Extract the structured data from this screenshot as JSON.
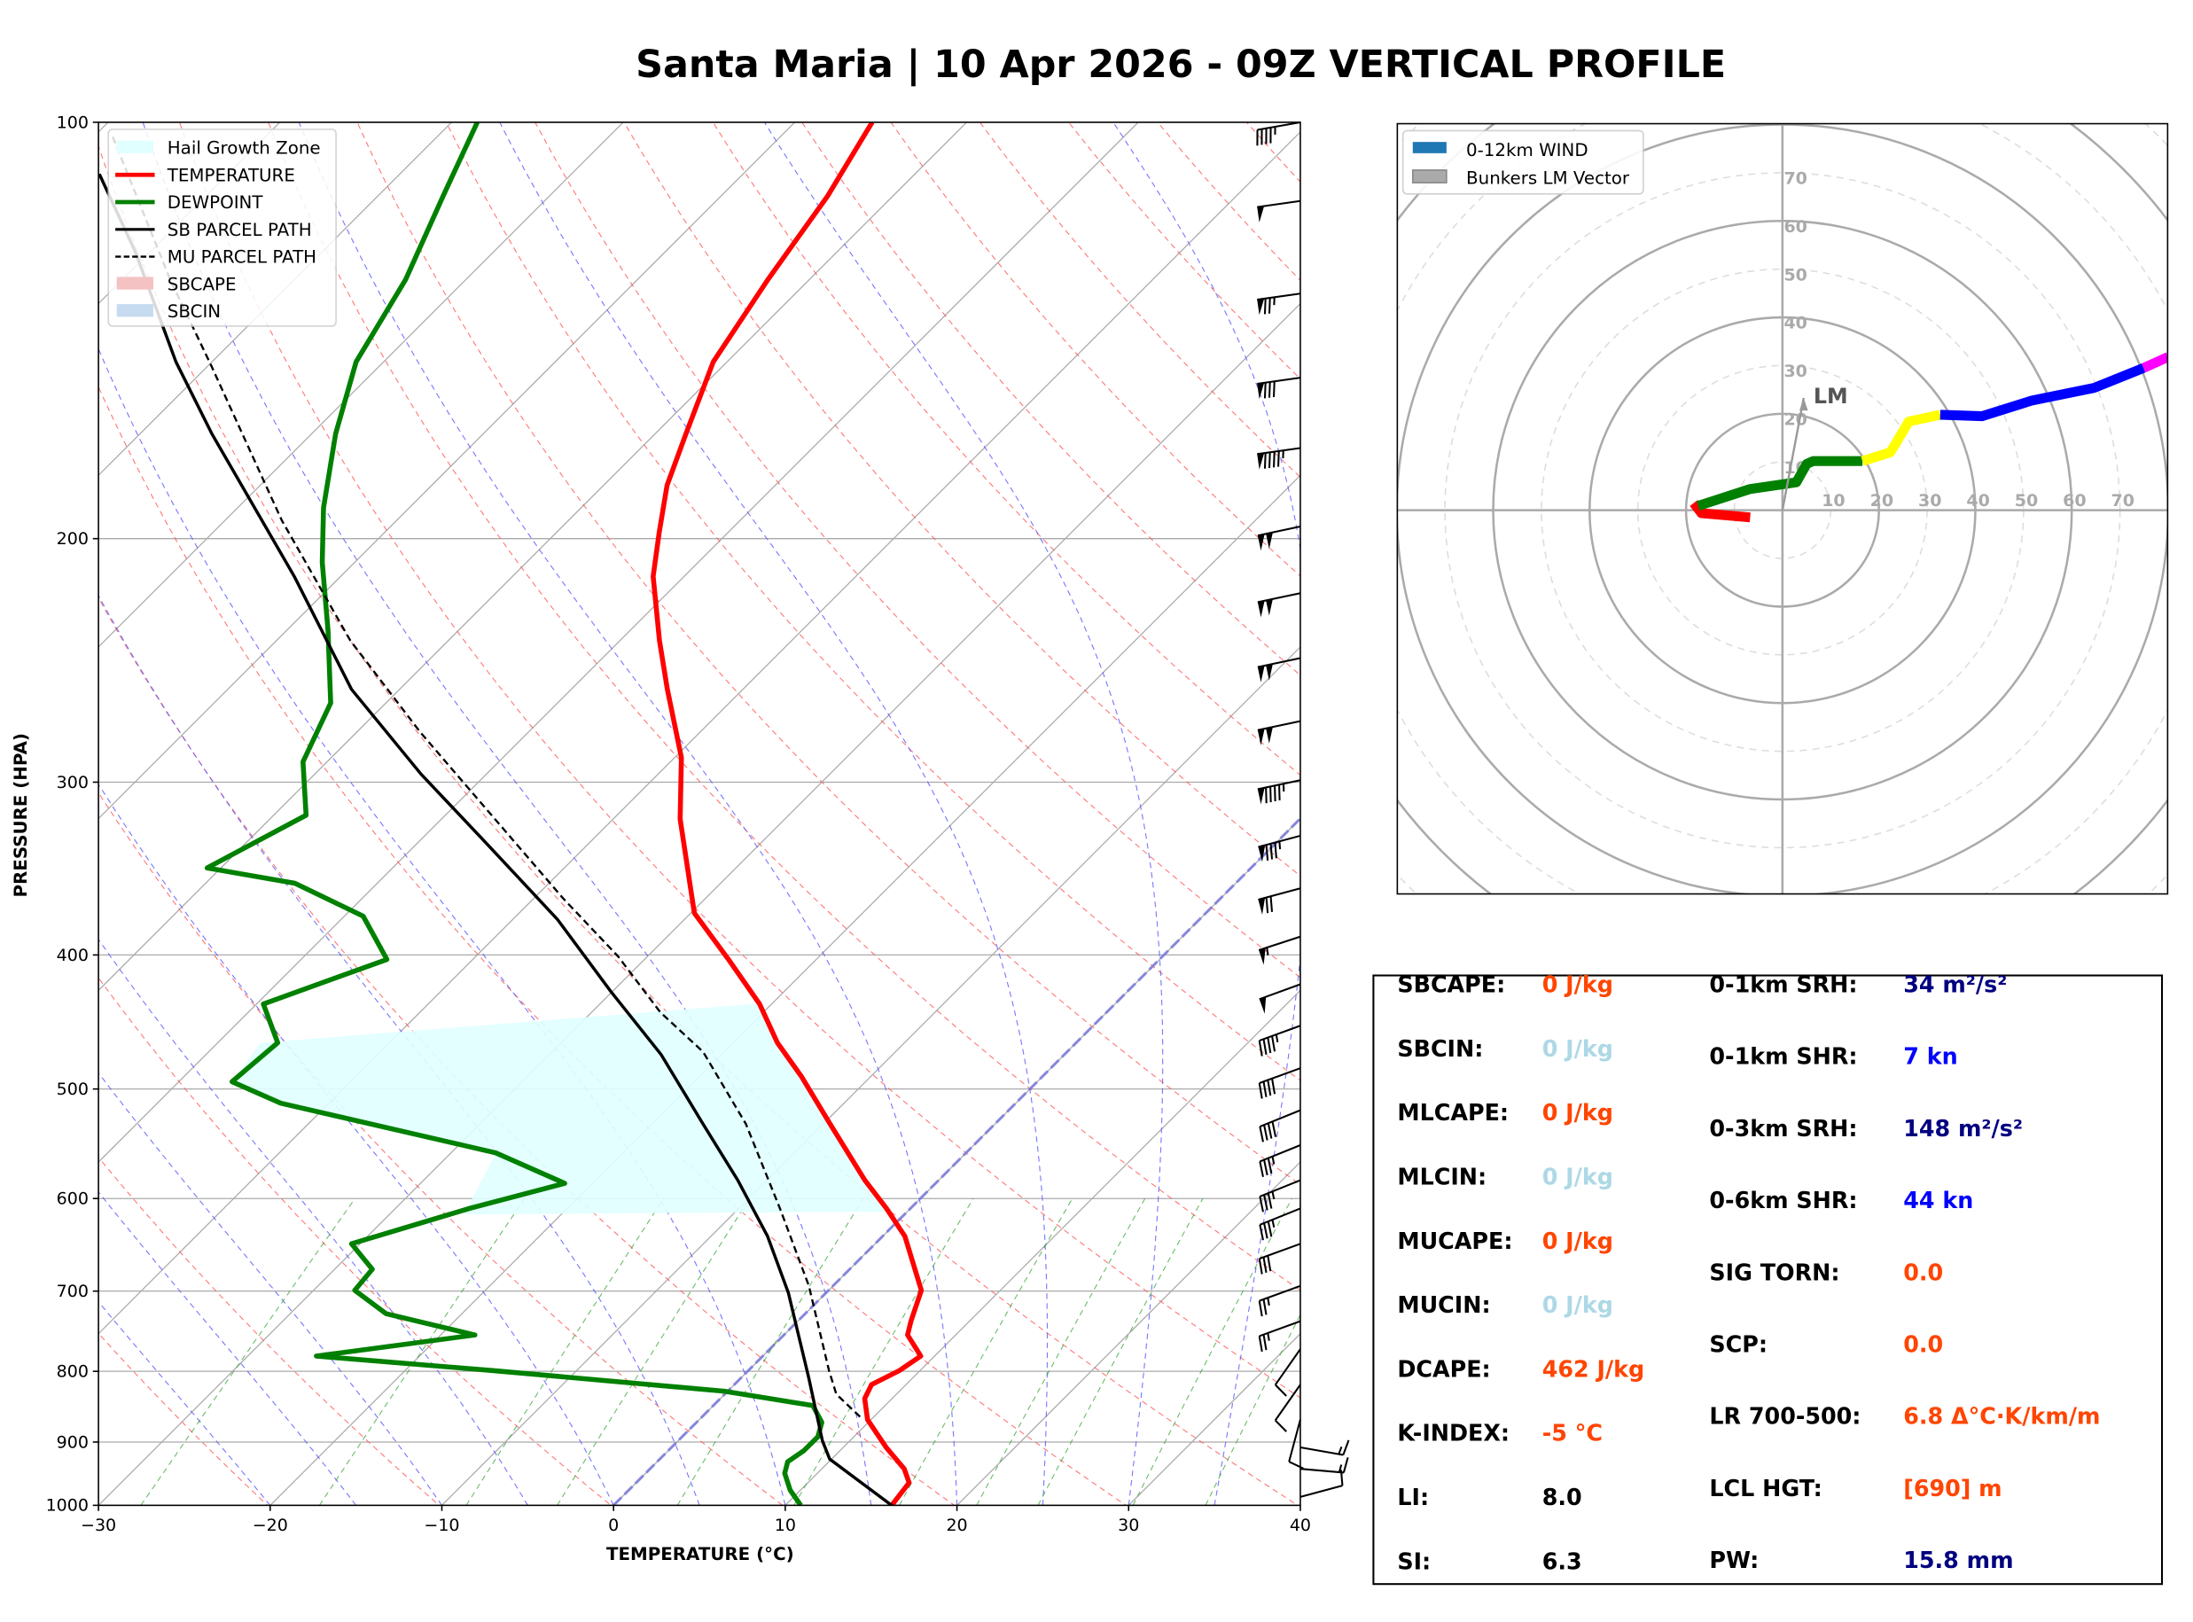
{
  "title": "Santa Maria | 10 Apr 2026 - 09Z VERTICAL PROFILE",
  "chart_data": [
    {
      "type": "line",
      "name": "skew-t",
      "xlabel": "TEMPERATURE (°C)",
      "ylabel": "PRESSURE (HPA)",
      "xlim": [
        -30,
        40
      ],
      "ylim": [
        1000,
        100
      ],
      "xticks": [
        "−30",
        "−20",
        "−10",
        "0",
        "10",
        "20",
        "30",
        "40"
      ],
      "yticks": [
        "100",
        "200",
        "300",
        "400",
        "500",
        "600",
        "700",
        "800",
        "900",
        "1000"
      ],
      "legend": {
        "position": "top-left",
        "items": [
          "Hail Growth Zone",
          "TEMPERATURE",
          "DEWPOINT",
          "SB PARCEL PATH",
          "MU PARCEL PATH",
          "SBCAPE",
          "SBCIN"
        ]
      },
      "colors": {
        "temperature": "#ff0000",
        "dewpoint": "#008000",
        "parcel": "#000000",
        "hail": "#e0ffff",
        "sbcape": "#f4c2c2",
        "sbcin": "#c6dbef"
      },
      "series": [
        {
          "name": "TEMPERATURE",
          "points": [
            [
              1000,
              16.2
            ],
            [
              963,
              15.9
            ],
            [
              941,
              14.8
            ],
            [
              908,
              12.5
            ],
            [
              867,
              9.8
            ],
            [
              837,
              8.4
            ],
            [
              818,
              8.0
            ],
            [
              799,
              8.8
            ],
            [
              780,
              9.2
            ],
            [
              753,
              7.2
            ],
            [
              736,
              6.6
            ],
            [
              699,
              5.4
            ],
            [
              639,
              1.3
            ],
            [
              610,
              -1.4
            ],
            [
              582,
              -4.3
            ],
            [
              530,
              -9.6
            ],
            [
              490,
              -14.0
            ],
            [
              463,
              -17.4
            ],
            [
              434,
              -20.7
            ],
            [
              403,
              -25.1
            ],
            [
              373,
              -29.8
            ],
            [
              319,
              -36.1
            ],
            [
              288,
              -39.6
            ],
            [
              257,
              -44.4
            ],
            [
              237,
              -47.7
            ],
            [
              213,
              -51.8
            ],
            [
              198,
              -54.0
            ],
            [
              183,
              -56.3
            ],
            [
              168,
              -58.2
            ],
            [
              149,
              -60.8
            ],
            [
              130,
              -62.4
            ],
            [
              113,
              -63.8
            ],
            [
              100,
              -65.5
            ]
          ]
        },
        {
          "name": "DEWPOINT",
          "points": [
            [
              1000,
              10.9
            ],
            [
              975,
              9.4
            ],
            [
              948,
              8.1
            ],
            [
              930,
              7.6
            ],
            [
              913,
              7.9
            ],
            [
              892,
              7.9
            ],
            [
              871,
              7.3
            ],
            [
              847,
              5.8
            ],
            [
              827,
              -0.2
            ],
            [
              799,
              -14.9
            ],
            [
              780,
              -26.0
            ],
            [
              753,
              -18.0
            ],
            [
              727,
              -24.4
            ],
            [
              699,
              -27.6
            ],
            [
              675,
              -27.8
            ],
            [
              647,
              -30.5
            ],
            [
              610,
              -25.7
            ],
            [
              585,
              -21.6
            ],
            [
              556,
              -27.4
            ],
            [
              512,
              -42.8
            ],
            [
              494,
              -46.9
            ],
            [
              463,
              -46.5
            ],
            [
              434,
              -49.6
            ],
            [
              403,
              -45.0
            ],
            [
              375,
              -48.9
            ],
            [
              355,
              -54.8
            ],
            [
              346,
              -60.8
            ],
            [
              317,
              -58.1
            ],
            [
              290,
              -61.4
            ],
            [
              263,
              -63.2
            ],
            [
              233,
              -67.6
            ],
            [
              208,
              -71.9
            ],
            [
              190,
              -75.0
            ],
            [
              168,
              -78.6
            ],
            [
              149,
              -81.6
            ],
            [
              130,
              -83.5
            ],
            [
              113,
              -86.2
            ],
            [
              100,
              -88.5
            ]
          ]
        },
        {
          "name": "SB PARCEL PATH",
          "points": [
            [
              1000,
              16.2
            ],
            [
              926,
              9.9
            ],
            [
              898,
              8.4
            ],
            [
              808,
              3.9
            ],
            [
              702,
              -2.2
            ],
            [
              639,
              -6.7
            ],
            [
              582,
              -11.7
            ],
            [
              530,
              -17.0
            ],
            [
              472,
              -23.5
            ],
            [
              425,
              -30.1
            ],
            [
              377,
              -37.4
            ],
            [
              332,
              -46.0
            ],
            [
              296,
              -53.8
            ],
            [
              257,
              -62.8
            ],
            [
              213,
              -72.7
            ],
            [
              168,
              -85.8
            ],
            [
              149,
              -92.1
            ],
            [
              124,
              -100.9
            ],
            [
              109,
              -107.5
            ]
          ]
        },
        {
          "name": "MU PARCEL PATH",
          "points": [
            [
              863,
              9.2
            ],
            [
              831,
              6.5
            ],
            [
              799,
              4.7
            ],
            [
              694,
              -1.4
            ],
            [
              610,
              -7.6
            ],
            [
              530,
              -14.5
            ],
            [
              470,
              -21.2
            ],
            [
              440,
              -26.0
            ],
            [
              401,
              -31.7
            ],
            [
              364,
              -38.3
            ],
            [
              317,
              -47.3
            ],
            [
              276,
              -56.3
            ],
            [
              237,
              -65.7
            ],
            [
              194,
              -76.7
            ],
            [
              150,
              -89.8
            ],
            [
              130,
              -97.2
            ],
            [
              102,
              -109.1
            ]
          ]
        }
      ],
      "wind_barbs": [
        [
          100,
          260,
          45
        ],
        [
          114,
          262,
          50
        ],
        [
          133,
          262,
          75
        ],
        [
          153,
          262,
          80
        ],
        [
          172,
          262,
          95
        ],
        [
          196,
          258,
          100
        ],
        [
          219,
          258,
          100
        ],
        [
          244,
          258,
          100
        ],
        [
          271,
          258,
          100
        ],
        [
          299,
          258,
          95
        ],
        [
          328,
          255,
          85
        ],
        [
          358,
          255,
          70
        ],
        [
          388,
          252,
          55
        ],
        [
          420,
          250,
          50
        ],
        [
          450,
          250,
          45
        ],
        [
          483,
          250,
          40
        ],
        [
          518,
          248,
          40
        ],
        [
          549,
          248,
          35
        ],
        [
          582,
          248,
          35
        ],
        [
          610,
          248,
          35
        ],
        [
          647,
          250,
          30
        ],
        [
          694,
          250,
          25
        ],
        [
          736,
          250,
          25
        ],
        [
          771,
          215,
          10
        ],
        [
          818,
          215,
          10
        ],
        [
          867,
          195,
          10
        ],
        [
          908,
          100,
          15
        ],
        [
          941,
          95,
          15
        ],
        [
          986,
          75,
          10
        ]
      ]
    },
    {
      "type": "line",
      "name": "hodograph",
      "rings": [
        "10",
        "20",
        "30",
        "40",
        "50",
        "60",
        "70"
      ],
      "legend": {
        "position": "top-left",
        "items": [
          "0-12km WIND",
          "Bunkers LM Vector"
        ]
      },
      "legend_color": "#1f77b4",
      "lm_label": "LM",
      "lm_vector": [
        4.4,
        23.3
      ],
      "segments": [
        {
          "color": "#ff0000",
          "uv": [
            [
              -6.7,
              -1.5
            ],
            [
              -16.8,
              -0.6
            ],
            [
              -18.4,
              1.5
            ]
          ]
        },
        {
          "color": "#008000",
          "uv": [
            [
              -17.5,
              0.9
            ],
            [
              -6.7,
              4.4
            ],
            [
              2.9,
              5.8
            ],
            [
              5.0,
              9.6
            ],
            [
              6.4,
              10.2
            ],
            [
              16.6,
              10.2
            ]
          ]
        },
        {
          "color": "#ffff00",
          "uv": [
            [
              16.6,
              10.2
            ],
            [
              22.4,
              12.0
            ],
            [
              26.2,
              18.4
            ],
            [
              32.7,
              19.8
            ]
          ]
        },
        {
          "color": "#0000ff",
          "uv": [
            [
              32.7,
              19.8
            ],
            [
              41.4,
              19.5
            ],
            [
              51.6,
              22.7
            ],
            [
              64.7,
              25.4
            ],
            [
              74.9,
              29.5
            ]
          ]
        },
        {
          "color": "#ff00ff",
          "uv": [
            [
              74.9,
              29.5
            ],
            [
              80.0,
              31.8
            ]
          ]
        }
      ]
    }
  ],
  "stats": {
    "left": [
      {
        "label": "SBCAPE:",
        "value": "0 J/kg",
        "color": "#ff4500"
      },
      {
        "label": "SBCIN:",
        "value": "0 J/kg",
        "color": "#add8e6"
      },
      {
        "label": "MLCAPE:",
        "value": "0 J/kg",
        "color": "#ff4500"
      },
      {
        "label": "MLCIN:",
        "value": "0 J/kg",
        "color": "#add8e6"
      },
      {
        "label": "MUCAPE:",
        "value": "0 J/kg",
        "color": "#ff4500"
      },
      {
        "label": "MUCIN:",
        "value": "0 J/kg",
        "color": "#add8e6"
      },
      {
        "label": "DCAPE:",
        "value": "462 J/kg",
        "color": "#ff4500"
      },
      {
        "label": "K-INDEX:",
        "value": "-5 °C",
        "color": "#ff4500"
      },
      {
        "label": "LI:",
        "value": "8.0",
        "color": "#000000"
      },
      {
        "label": "SI:",
        "value": "6.3",
        "color": "#000000"
      }
    ],
    "right": [
      {
        "label": "0-1km SRH:",
        "value": "34 m²/s²",
        "color": "#000080"
      },
      {
        "label": "0-1km SHR:",
        "value": "7 kn",
        "color": "#0000ff"
      },
      {
        "label": "0-3km SRH:",
        "value": "148 m²/s²",
        "color": "#000080"
      },
      {
        "label": "0-6km SHR:",
        "value": "44 kn",
        "color": "#0000ff"
      },
      {
        "label": "SIG TORN:",
        "value": "0.0",
        "color": "#ff4500"
      },
      {
        "label": "SCP:",
        "value": "0.0",
        "color": "#ff4500"
      },
      {
        "label": "LR 700-500:",
        "value": "6.8 Δ°C·K/km/m",
        "color": "#ff4500"
      },
      {
        "label": "LCL HGT:",
        "value": "[690] m",
        "color": "#ff4500"
      },
      {
        "label": "PW:",
        "value": "15.8 mm",
        "color": "#000080"
      }
    ]
  }
}
